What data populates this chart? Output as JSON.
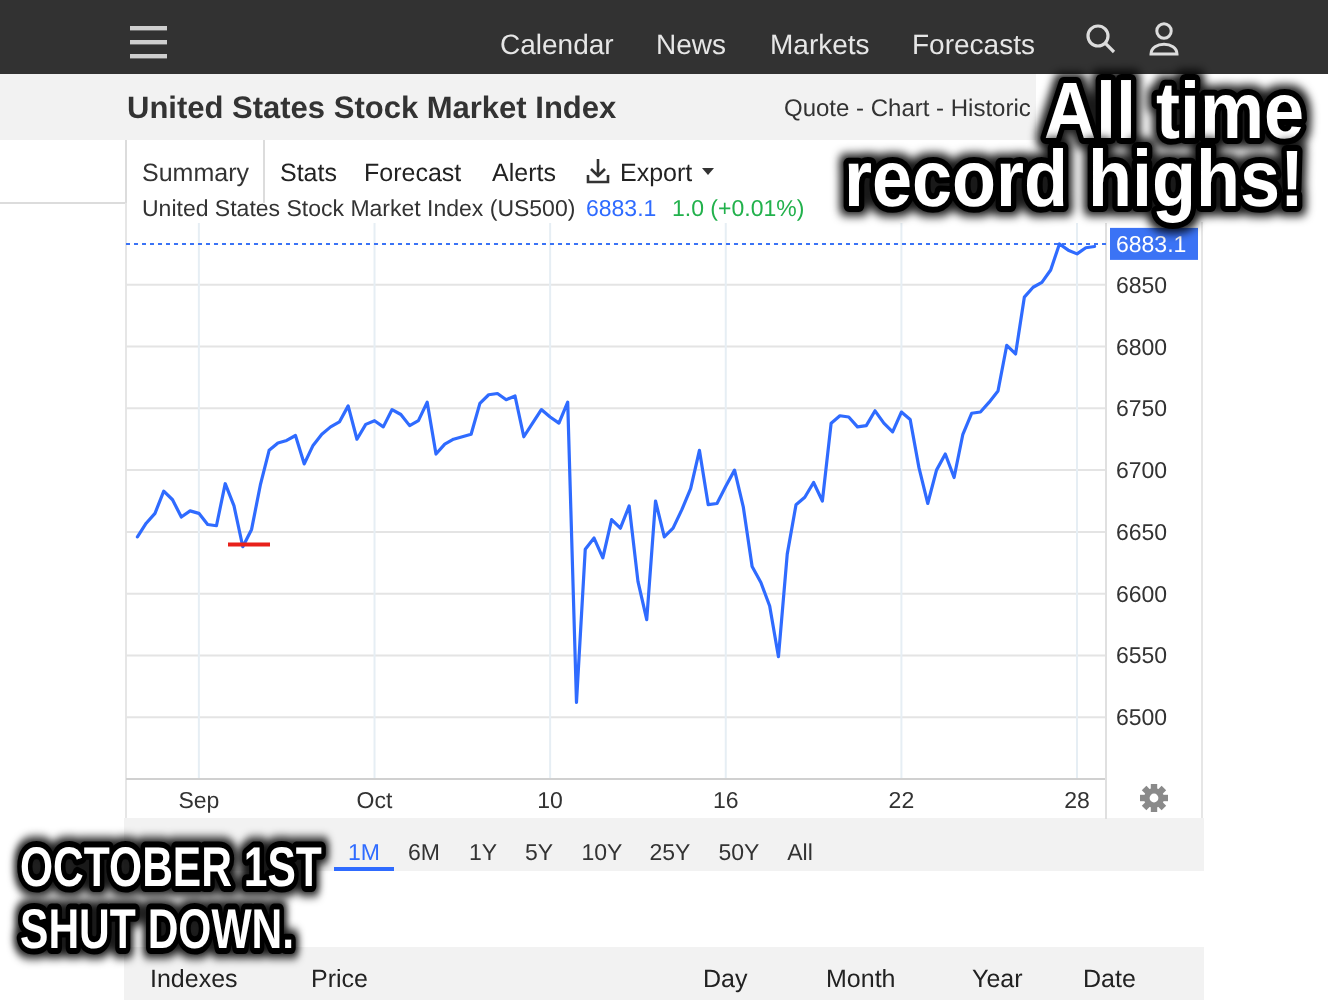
{
  "chart_data": {
    "type": "line",
    "title": "United States Stock Market Index",
    "subtitle": "United States Stock Market Index (US500)",
    "categories": [
      null,
      null,
      null,
      null,
      null,
      null,
      null,
      "Sep",
      null,
      null,
      null,
      null,
      null,
      null,
      null,
      null,
      null,
      null,
      null,
      null,
      null,
      null,
      null,
      null,
      null,
      null,
      null,
      "Oct",
      null,
      null,
      null,
      null,
      null,
      null,
      null,
      null,
      null,
      null,
      null,
      null,
      null,
      null,
      null,
      null,
      null,
      null,
      null,
      "10",
      null,
      null,
      null,
      null,
      null,
      null,
      null,
      null,
      null,
      null,
      null,
      null,
      null,
      null,
      null,
      null,
      null,
      null,
      null,
      "16",
      null,
      null,
      null,
      null,
      null,
      null,
      null,
      null,
      null,
      null,
      null,
      null,
      null,
      null,
      null,
      null,
      null,
      null,
      null,
      "22",
      null,
      null,
      null,
      null,
      null,
      null,
      null,
      null,
      null,
      null,
      null,
      null,
      null,
      null,
      null,
      null,
      null,
      null,
      null,
      "28",
      null,
      null
    ],
    "series": [
      {
        "color": "#2f6bff",
        "values": [
          6646,
          6657,
          6665,
          6683,
          6676,
          6662,
          6667,
          6665,
          6656,
          6655,
          6689,
          6671,
          6638,
          6652,
          6688,
          6716,
          6722,
          6724,
          6728,
          6705,
          6720,
          6729,
          6735,
          6739,
          6752,
          6725,
          6737,
          6740,
          6735,
          6749,
          6745,
          6736,
          6740,
          6755,
          6713,
          6721,
          6725,
          6727,
          6729,
          6754,
          6761,
          6762,
          6757,
          6760,
          6727,
          6738,
          6749,
          6743,
          6738,
          6755,
          6512,
          6636,
          6645,
          6629,
          6660,
          6653,
          6671,
          6610,
          6579,
          6675,
          6646,
          6653,
          6668,
          6685,
          6716,
          6672,
          6673,
          6687,
          6700,
          6670,
          6622,
          6609,
          6590,
          6549,
          6632,
          6672,
          6678,
          6690,
          6675,
          6738,
          6744,
          6743,
          6735,
          6736,
          6748,
          6738,
          6731,
          6747,
          6741,
          6702,
          6673,
          6700,
          6713,
          6694,
          6729,
          6746,
          6747,
          6755,
          6764,
          6801,
          6794,
          6840,
          6848,
          6852,
          6862,
          6883,
          6878,
          6875,
          6880,
          6881
        ]
      }
    ],
    "ylim": [
      6450,
      6900
    ],
    "yticks": [
      6500,
      6550,
      6600,
      6650,
      6700,
      6750,
      6800,
      6850
    ],
    "grid": true,
    "ref_lines": [
      {
        "axis": "y",
        "value": 6883.1,
        "label": "6883.1",
        "color": "#3b73f5",
        "line_style": "dotted"
      }
    ],
    "annotations": [
      "Calendar",
      "News",
      "Markets",
      "Forecasts",
      "Quote - Chart - Historic",
      "Summary",
      "Stats",
      "Forecast",
      "Alerts",
      "Export",
      "6883.1",
      "1.0 (+0.01%)",
      "1M",
      "6M",
      "1Y",
      "5Y",
      "10Y",
      "25Y",
      "50Y",
      "All",
      "Indexes",
      "Price",
      "Day",
      "Month",
      "Year",
      "Date",
      "All time",
      "record highs!",
      "OCTOBER 1ST",
      "SHUT DOWN."
    ]
  }
}
